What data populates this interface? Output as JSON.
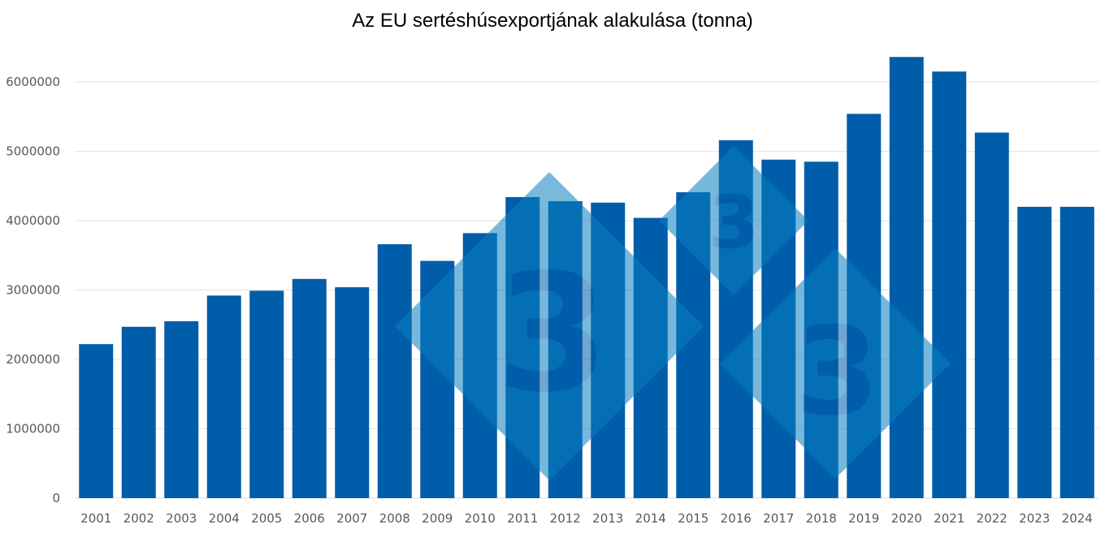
{
  "chart_data": {
    "type": "bar",
    "title": "Az EU sertéshúsexportjának alakulása (tonna)",
    "xlabel": "",
    "ylabel": "",
    "ylim": [
      0,
      6500000
    ],
    "yticks": [
      "0",
      "1000000",
      "2000000",
      "3000000",
      "4000000",
      "5000000",
      "6000000"
    ],
    "grid": true,
    "categories": [
      "2001",
      "2002",
      "2003",
      "2004",
      "2005",
      "2006",
      "2007",
      "2008",
      "2009",
      "2010",
      "2011",
      "2012",
      "2013",
      "2014",
      "2015",
      "2016",
      "2017",
      "2018",
      "2019",
      "2020",
      "2021",
      "2022",
      "2023",
      "2024"
    ],
    "values": [
      2220000,
      2470000,
      2550000,
      2920000,
      2990000,
      3160000,
      3040000,
      3660000,
      3420000,
      3820000,
      4340000,
      4280000,
      4260000,
      4040000,
      4410000,
      5160000,
      4880000,
      4850000,
      5540000,
      6360000,
      6150000,
      5270000,
      4200000,
      4200000
    ],
    "bar_color": "#005DAA",
    "watermark_color": "#0A7FC0"
  }
}
